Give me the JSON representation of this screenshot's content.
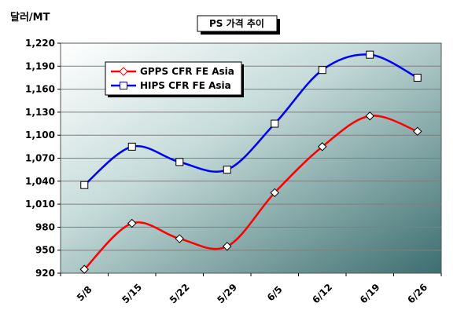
{
  "chart_data": {
    "type": "line",
    "title": "PS 가격 추이",
    "ylabel": "달러/MT",
    "xlabel": "",
    "categories": [
      "5/8",
      "5/15",
      "5/22",
      "5/29",
      "6/5",
      "6/12",
      "6/19",
      "6/26"
    ],
    "ylim": [
      920,
      1220
    ],
    "yticks": [
      "920",
      "950",
      "980",
      "1,010",
      "1,040",
      "1,070",
      "1,100",
      "1,130",
      "1,160",
      "1,190",
      "1,220"
    ],
    "ytick_values": [
      920,
      950,
      980,
      1010,
      1040,
      1070,
      1100,
      1130,
      1160,
      1190,
      1220
    ],
    "grid": true,
    "legend_position": "top-left",
    "series": [
      {
        "name": "GPPS CFR FE Asia",
        "color": "#ff0000",
        "marker": "diamond",
        "values": [
          925,
          985,
          965,
          955,
          1025,
          1085,
          1125,
          1105
        ]
      },
      {
        "name": "HIPS CFR FE Asia",
        "color": "#0000ff",
        "marker": "square",
        "values": [
          1035,
          1085,
          1065,
          1055,
          1115,
          1185,
          1205,
          1175
        ]
      }
    ]
  }
}
